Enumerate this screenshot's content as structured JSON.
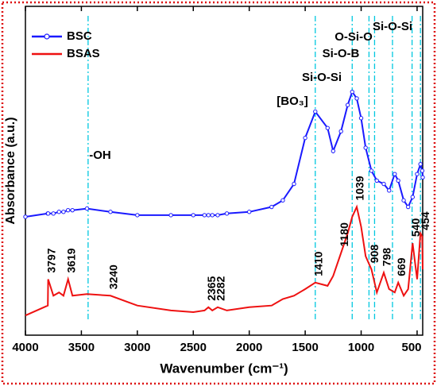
{
  "chart_data": {
    "type": "line",
    "xlabel": "Wavenumber (cm⁻¹)",
    "ylabel": "Absorbance (a.u.)",
    "xlim": [
      4000,
      450
    ],
    "ylim": [
      0,
      1
    ],
    "xticks": [
      4000,
      3500,
      3000,
      2500,
      2000,
      1500,
      1000,
      500
    ],
    "legend": "upper left",
    "x": [
      4000,
      3800,
      3797,
      3750,
      3700,
      3660,
      3619,
      3580,
      3450,
      3240,
      3000,
      2700,
      2500,
      2400,
      2365,
      2330,
      2282,
      2200,
      2000,
      1800,
      1700,
      1600,
      1500,
      1410,
      1300,
      1250,
      1180,
      1120,
      1080,
      1039,
      1000,
      960,
      908,
      860,
      798,
      750,
      700,
      669,
      620,
      580,
      540,
      500,
      470,
      454,
      450
    ],
    "series": [
      {
        "name": "BSC",
        "color": "#1a1aff",
        "marker": "circle",
        "values": [
          0.36,
          0.37,
          0.37,
          0.37,
          0.375,
          0.375,
          0.38,
          0.38,
          0.385,
          0.375,
          0.365,
          0.365,
          0.365,
          0.365,
          0.365,
          0.365,
          0.365,
          0.37,
          0.375,
          0.39,
          0.41,
          0.46,
          0.6,
          0.68,
          0.63,
          0.56,
          0.62,
          0.7,
          0.74,
          0.72,
          0.66,
          0.57,
          0.5,
          0.47,
          0.46,
          0.44,
          0.49,
          0.47,
          0.41,
          0.39,
          0.42,
          0.49,
          0.52,
          0.5,
          0.48
        ]
      },
      {
        "name": "BSAS",
        "color": "#ee1111",
        "values": [
          0.06,
          0.09,
          0.17,
          0.12,
          0.13,
          0.12,
          0.17,
          0.12,
          0.125,
          0.12,
          0.09,
          0.075,
          0.07,
          0.075,
          0.085,
          0.075,
          0.085,
          0.075,
          0.085,
          0.09,
          0.11,
          0.12,
          0.14,
          0.16,
          0.15,
          0.18,
          0.25,
          0.31,
          0.36,
          0.39,
          0.33,
          0.24,
          0.2,
          0.13,
          0.19,
          0.14,
          0.13,
          0.16,
          0.12,
          0.14,
          0.28,
          0.17,
          0.31,
          0.3,
          0.2
        ]
      }
    ],
    "peak_labels": [
      3797,
      3619,
      3240,
      2365,
      2282,
      1410,
      1180,
      1039,
      908,
      798,
      669,
      540,
      454
    ],
    "reference_lines": [
      3440,
      1410,
      1080,
      930,
      880,
      720,
      545,
      470
    ],
    "reference_color": "#00c8e0",
    "annotations": [
      "-OH",
      "[BO₃]",
      "Si-O-Si",
      "Si-O-B",
      "O-Si-O",
      "Si-O-Si"
    ]
  }
}
